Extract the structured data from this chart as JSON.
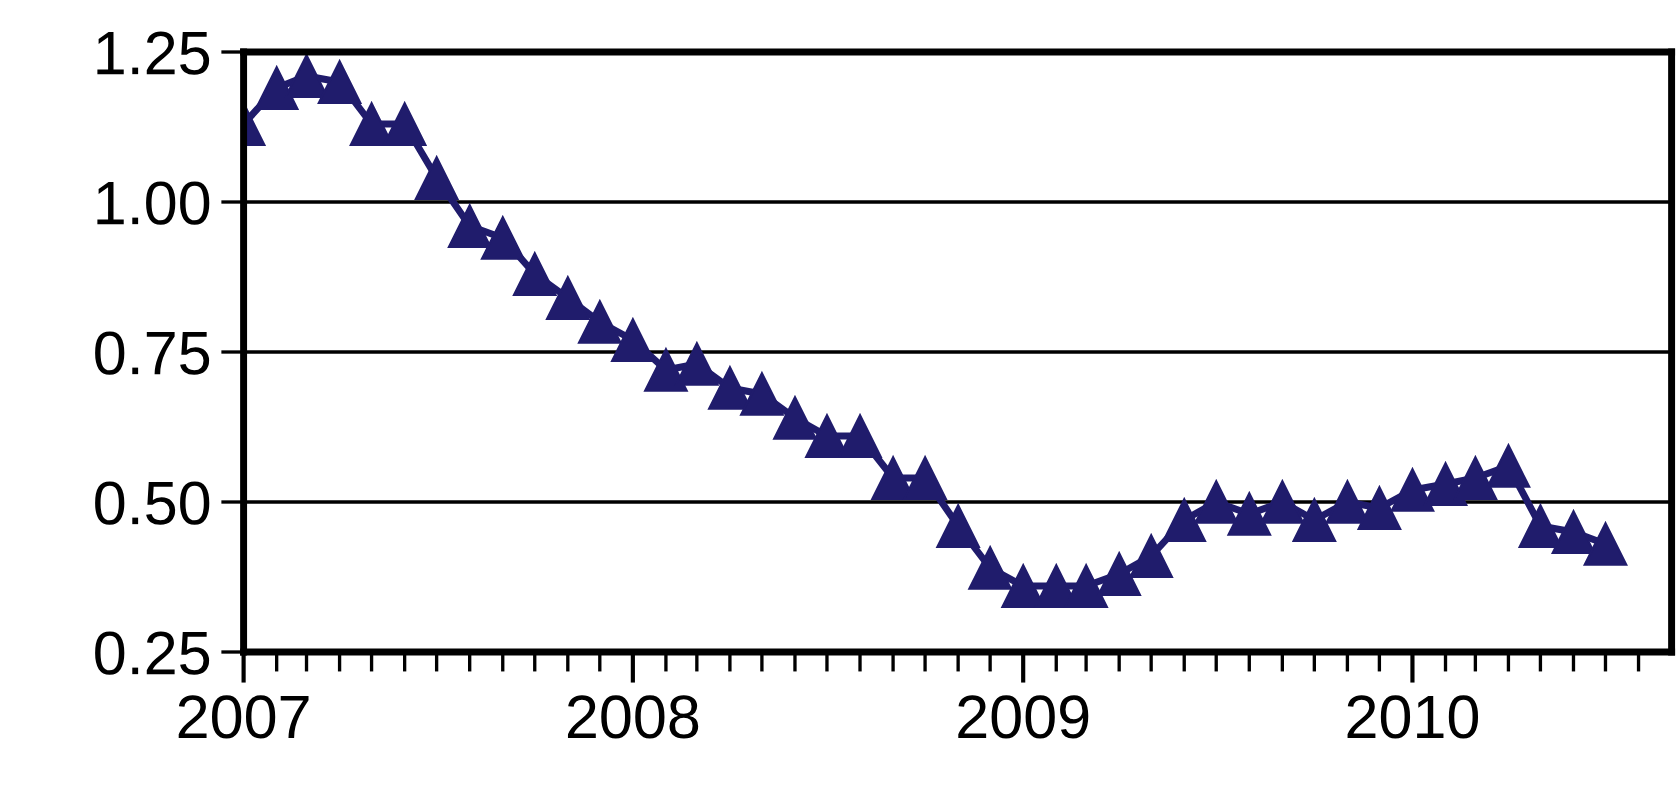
{
  "chart_data": {
    "type": "line",
    "x": [
      "2007-01",
      "2007-02",
      "2007-03",
      "2007-04",
      "2007-05",
      "2007-06",
      "2007-07",
      "2007-08",
      "2007-09",
      "2007-10",
      "2007-11",
      "2007-12",
      "2008-01",
      "2008-02",
      "2008-03",
      "2008-04",
      "2008-05",
      "2008-06",
      "2008-07",
      "2008-08",
      "2008-09",
      "2008-10",
      "2008-11",
      "2008-12",
      "2009-01",
      "2009-02",
      "2009-03",
      "2009-04",
      "2009-05",
      "2009-06",
      "2009-07",
      "2009-08",
      "2009-09",
      "2009-10",
      "2009-11",
      "2009-12",
      "2010-01",
      "2010-02",
      "2010-03",
      "2010-04",
      "2010-05",
      "2010-06",
      "2010-07"
    ],
    "series": [
      {
        "color": "#201c6c",
        "values": [
          1.13,
          1.19,
          1.21,
          1.2,
          1.13,
          1.13,
          1.04,
          0.96,
          0.94,
          0.88,
          0.84,
          0.8,
          0.77,
          0.72,
          0.73,
          0.69,
          0.68,
          0.64,
          0.61,
          0.61,
          0.54,
          0.54,
          0.46,
          0.39,
          0.36,
          0.36,
          0.36,
          0.38,
          0.41,
          0.47,
          0.5,
          0.48,
          0.5,
          0.47,
          0.5,
          0.49,
          0.52,
          0.53,
          0.54,
          0.56,
          0.46,
          0.45,
          0.43
        ]
      }
    ],
    "xlim": [
      "2007-01",
      "2010-09"
    ],
    "xticks": [
      {
        "value": "2007-01",
        "label": "2007"
      },
      {
        "value": "2008-01",
        "label": "2008"
      },
      {
        "value": "2009-01",
        "label": "2009"
      },
      {
        "value": "2010-01",
        "label": "2010"
      },
      {
        "value": "2007-02",
        "label": null
      },
      {
        "value": "2007-03",
        "label": null
      },
      {
        "value": "2007-04",
        "label": null
      },
      {
        "value": "2007-05",
        "label": null
      },
      {
        "value": "2007-06",
        "label": null
      },
      {
        "value": "2007-07",
        "label": null
      },
      {
        "value": "2007-08",
        "label": null
      },
      {
        "value": "2007-09",
        "label": null
      },
      {
        "value": "2007-10",
        "label": null
      },
      {
        "value": "2007-11",
        "label": null
      },
      {
        "value": "2007-12",
        "label": null
      },
      {
        "value": "2008-02",
        "label": null
      },
      {
        "value": "2008-03",
        "label": null
      },
      {
        "value": "2008-04",
        "label": null
      },
      {
        "value": "2008-05",
        "label": null
      },
      {
        "value": "2008-06",
        "label": null
      },
      {
        "value": "2008-07",
        "label": null
      },
      {
        "value": "2008-08",
        "label": null
      },
      {
        "value": "2008-09",
        "label": null
      },
      {
        "value": "2008-10",
        "label": null
      },
      {
        "value": "2008-11",
        "label": null
      },
      {
        "value": "2008-12",
        "label": null
      },
      {
        "value": "2009-02",
        "label": null
      },
      {
        "value": "2009-03",
        "label": null
      },
      {
        "value": "2009-04",
        "label": null
      },
      {
        "value": "2009-05",
        "label": null
      },
      {
        "value": "2009-06",
        "label": null
      },
      {
        "value": "2009-07",
        "label": null
      },
      {
        "value": "2009-08",
        "label": null
      },
      {
        "value": "2009-09",
        "label": null
      },
      {
        "value": "2009-10",
        "label": null
      },
      {
        "value": "2009-11",
        "label": null
      },
      {
        "value": "2009-12",
        "label": null
      },
      {
        "value": "2010-02",
        "label": null
      },
      {
        "value": "2010-03",
        "label": null
      },
      {
        "value": "2010-04",
        "label": null
      },
      {
        "value": "2010-05",
        "label": null
      },
      {
        "value": "2010-06",
        "label": null
      },
      {
        "value": "2010-07",
        "label": null
      },
      {
        "value": "2010-08",
        "label": null
      }
    ],
    "ylim": [
      0.25,
      1.25
    ],
    "yticks": [
      {
        "value": 0.25,
        "label": "0.25"
      },
      {
        "value": 0.5,
        "label": "0.50"
      },
      {
        "value": 0.75,
        "label": "0.75"
      },
      {
        "value": 1.0,
        "label": "1.00"
      },
      {
        "value": 1.25,
        "label": "1.25"
      }
    ],
    "grid": "y",
    "marker": "triangle",
    "line_style": "solid",
    "legend": false
  }
}
